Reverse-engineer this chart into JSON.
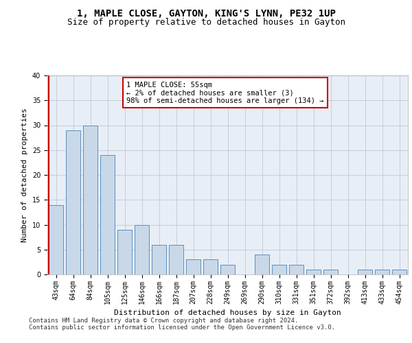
{
  "title1": "1, MAPLE CLOSE, GAYTON, KING'S LYNN, PE32 1UP",
  "title2": "Size of property relative to detached houses in Gayton",
  "xlabel": "Distribution of detached houses by size in Gayton",
  "ylabel": "Number of detached properties",
  "categories": [
    "43sqm",
    "64sqm",
    "84sqm",
    "105sqm",
    "125sqm",
    "146sqm",
    "166sqm",
    "187sqm",
    "207sqm",
    "228sqm",
    "249sqm",
    "269sqm",
    "290sqm",
    "310sqm",
    "331sqm",
    "351sqm",
    "372sqm",
    "392sqm",
    "413sqm",
    "433sqm",
    "454sqm"
  ],
  "values": [
    14,
    29,
    30,
    24,
    9,
    10,
    6,
    6,
    3,
    3,
    2,
    0,
    4,
    2,
    2,
    1,
    1,
    0,
    1,
    1,
    1
  ],
  "bar_color": "#c8d8e8",
  "bar_edge_color": "#5a8fc0",
  "grid_color": "#c0c8d8",
  "background_color": "#e8eef6",
  "vline_color": "#cc0000",
  "annotation_line1": "1 MAPLE CLOSE: 55sqm",
  "annotation_line2": "← 2% of detached houses are smaller (3)",
  "annotation_line3": "98% of semi-detached houses are larger (134) →",
  "annotation_box_color": "#cc0000",
  "ylim": [
    0,
    40
  ],
  "yticks": [
    0,
    5,
    10,
    15,
    20,
    25,
    30,
    35,
    40
  ],
  "footer": "Contains HM Land Registry data © Crown copyright and database right 2024.\nContains public sector information licensed under the Open Government Licence v3.0.",
  "title_fontsize": 10,
  "subtitle_fontsize": 9,
  "axis_label_fontsize": 8,
  "tick_fontsize": 7,
  "annotation_fontsize": 7.5,
  "footer_fontsize": 6.5
}
